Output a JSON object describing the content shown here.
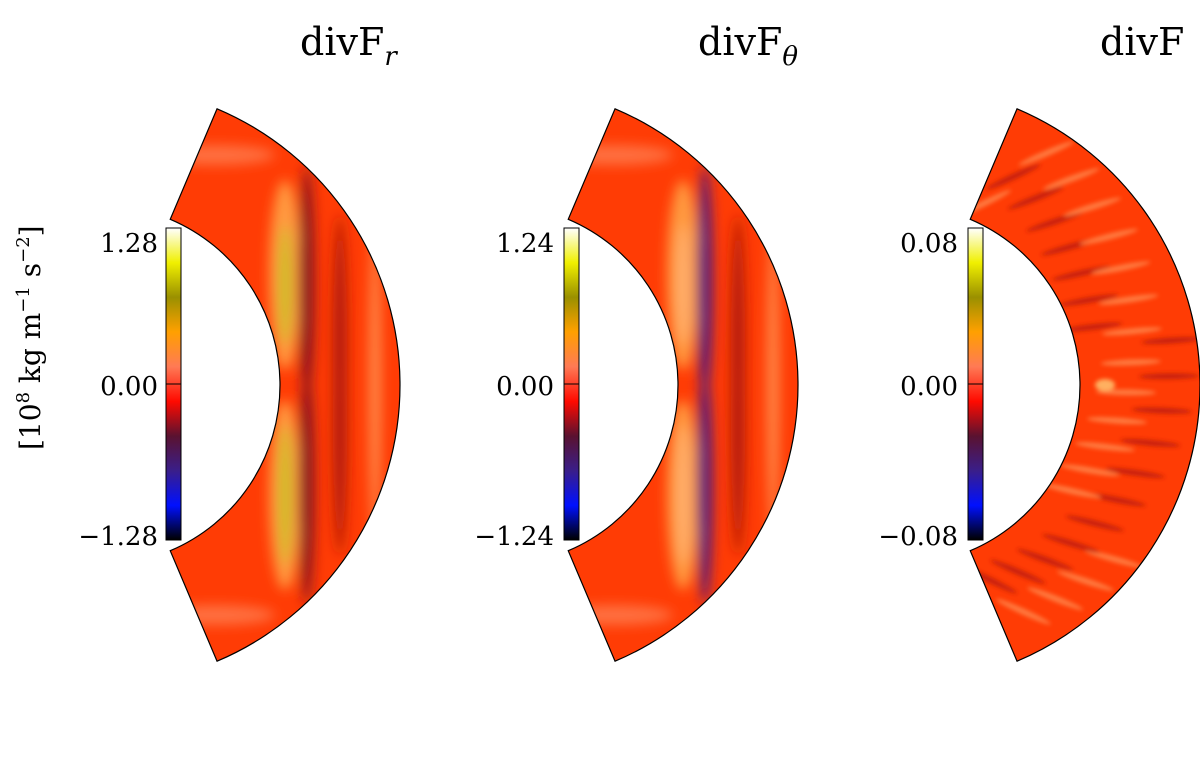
{
  "chart_data": [
    {
      "type": "heatmap",
      "title": "divF",
      "title_subscript": "r",
      "colorbar_ticks": [
        1.28,
        0.0,
        -1.28
      ],
      "colorbar_tick_labels": [
        "1.28",
        "0.00",
        "−1.28"
      ],
      "clim": [
        -1.28,
        1.28
      ]
    },
    {
      "type": "heatmap",
      "title": "divF",
      "title_subscript": "θ",
      "colorbar_ticks": [
        1.24,
        0.0,
        -1.24
      ],
      "colorbar_tick_labels": [
        "1.24",
        "0.00",
        "−1.24"
      ],
      "clim": [
        -1.24,
        1.24
      ]
    },
    {
      "type": "heatmap",
      "title": "divF",
      "title_subscript": "",
      "colorbar_ticks": [
        0.08,
        0.0,
        -0.08
      ],
      "colorbar_tick_labels": [
        "0.08",
        "0.00",
        "−0.08"
      ],
      "clim": [
        -0.08,
        0.08
      ]
    }
  ],
  "colorbar_label": {
    "open": "[",
    "base": "10",
    "exp": "8",
    "mid": " kg m",
    "exp_m": "−1",
    "s": " s",
    "exp_s": "−2",
    "close": "]"
  },
  "colormap": [
    "#000000",
    "#0010ff",
    "#3a1e8a",
    "#5a1230",
    "#ff0a00",
    "#ff7a55",
    "#ffa000",
    "#9a9000",
    "#f0f000",
    "#ffffff"
  ]
}
